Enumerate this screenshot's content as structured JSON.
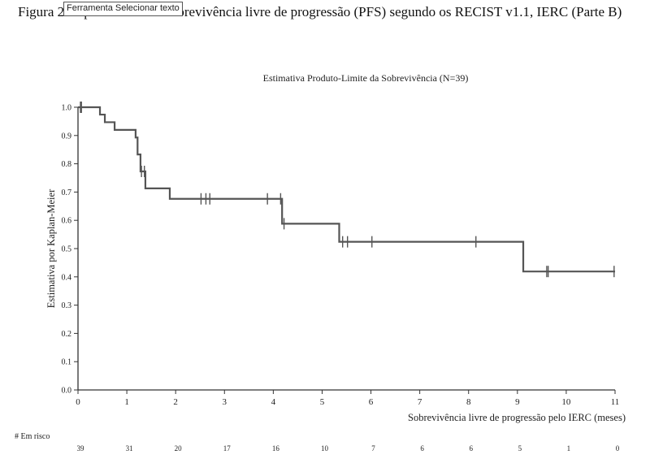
{
  "caption": {
    "text": "Figura 2 Kaplan-Meier da sobrevivência livre de progressão (PFS) segundo os RECIST v1.1, IERC (Parte B)"
  },
  "tooltip": {
    "label": "Ferramenta Selecionar texto"
  },
  "chart_data": {
    "type": "line",
    "step": "post",
    "title": "Estimativa Produto-Limite da Sobrevivência (N=39)",
    "xlabel": "Sobrevivência livre de progressão pelo IERC (meses)",
    "ylabel": "Estimativa por Kaplan-Meier",
    "xlim": [
      0,
      11
    ],
    "ylim": [
      0,
      1
    ],
    "x_ticks": [
      "0",
      "1",
      "2",
      "3",
      "4",
      "5",
      "6",
      "7",
      "8",
      "9",
      "10",
      "11"
    ],
    "y_ticks": [
      "0.0",
      "0.1",
      "0.2",
      "0.3",
      "0.4",
      "0.5",
      "0.6",
      "0.7",
      "0.8",
      "0.9",
      "1.0"
    ],
    "grid": false,
    "series": [
      {
        "color": "#555555",
        "x": [
          0,
          0.45,
          0.55,
          0.75,
          1.18,
          1.22,
          1.28,
          1.38,
          1.88,
          4.18,
          5.35,
          9.12,
          11.0
        ],
        "y": [
          1.0,
          0.974,
          0.947,
          0.92,
          0.893,
          0.833,
          0.773,
          0.713,
          0.676,
          0.588,
          0.524,
          0.419,
          0.419
        ]
      }
    ],
    "censored": {
      "x": [
        0.05,
        0.07,
        1.3,
        1.36,
        2.52,
        2.62,
        2.7,
        3.88,
        4.15,
        4.22,
        5.42,
        5.52,
        6.02,
        8.15,
        9.6,
        9.63,
        10.98
      ],
      "y": [
        1.0,
        1.0,
        0.773,
        0.773,
        0.676,
        0.676,
        0.676,
        0.676,
        0.676,
        0.588,
        0.524,
        0.524,
        0.524,
        0.524,
        0.419,
        0.419,
        0.419
      ]
    },
    "at_risk": {
      "label": "# Em risco",
      "values": [
        "39",
        "31",
        "20",
        "17",
        "16",
        "10",
        "7",
        "6",
        "6",
        "5",
        "1",
        "0"
      ]
    }
  }
}
